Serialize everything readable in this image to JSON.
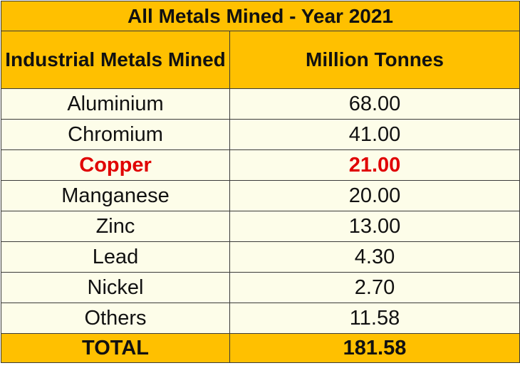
{
  "chart_data": {
    "type": "table",
    "title": "All Metals Mined - Year 2021",
    "columns": [
      "Industrial Metals Mined",
      "Million Tonnes"
    ],
    "rows": [
      {
        "metal": "Aluminium",
        "value": "68.00"
      },
      {
        "metal": "Chromium",
        "value": "41.00"
      },
      {
        "metal": "Copper",
        "value": "21.00",
        "highlight": true
      },
      {
        "metal": "Manganese",
        "value": "20.00"
      },
      {
        "metal": "Zinc",
        "value": "13.00"
      },
      {
        "metal": "Lead",
        "value": "4.30"
      },
      {
        "metal": "Nickel",
        "value": "2.70"
      },
      {
        "metal": "Others",
        "value": "11.58"
      }
    ],
    "total": {
      "label": "TOTAL",
      "value": "181.58"
    }
  },
  "colors": {
    "header_bg": "#ffc000",
    "body_bg": "#fdfde9",
    "highlight_text": "#e00000"
  }
}
